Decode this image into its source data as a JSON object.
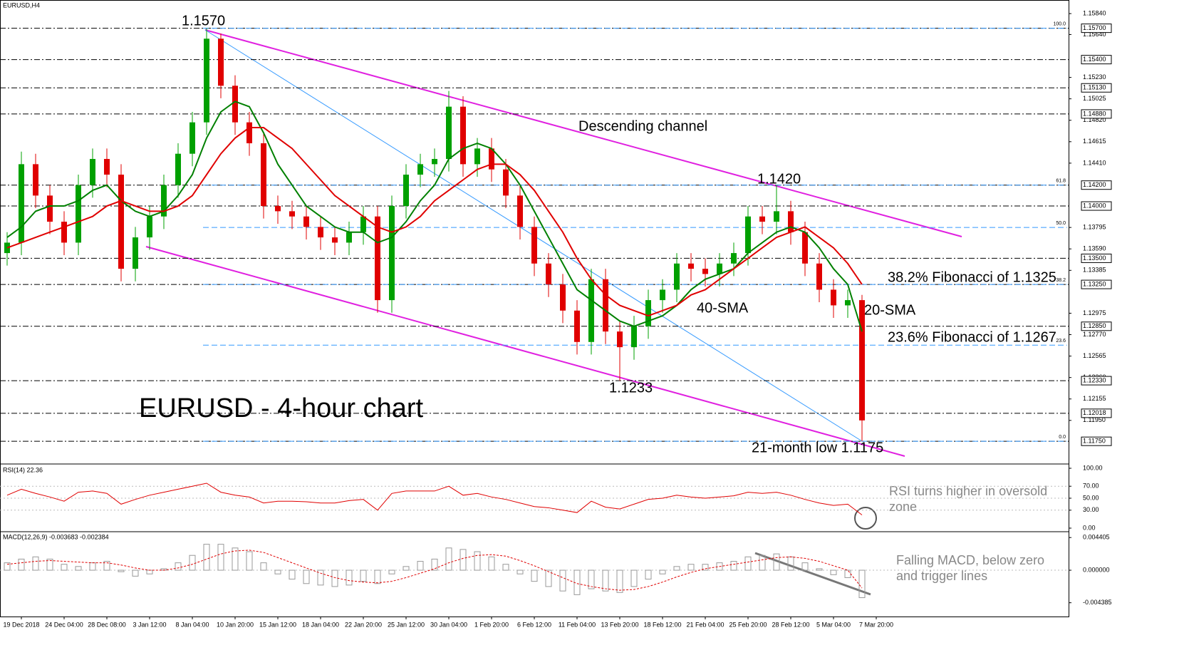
{
  "chart_data": {
    "type": "candlestick",
    "title": "EURUSD - 4-hour chart",
    "symbol_label": "EURUSD,H4",
    "xlabels": [
      "19 Dec 2018",
      "24 Dec 04:00",
      "28 Dec 08:00",
      "3 Jan 12:00",
      "8 Jan 04:00",
      "10 Jan 20:00",
      "15 Jan 12:00",
      "18 Jan 04:00",
      "22 Jan 20:00",
      "25 Jan 12:00",
      "30 Jan 04:00",
      "1 Feb 20:00",
      "6 Feb 12:00",
      "11 Feb 04:00",
      "13 Feb 20:00",
      "18 Feb 12:00",
      "21 Feb 04:00",
      "25 Feb 20:00",
      "28 Feb 12:00",
      "5 Mar 04:00",
      "7 Mar 20:00"
    ],
    "open": [
      1.1355,
      1.1365,
      1.144,
      1.141,
      1.1385,
      1.1365,
      1.142,
      1.1445,
      1.143,
      1.134,
      1.137,
      1.139,
      1.142,
      1.145,
      1.148,
      1.156,
      1.1515,
      1.148,
      1.146,
      1.14,
      1.1395,
      1.139,
      1.138,
      1.137,
      1.1365,
      1.1375,
      1.139,
      1.131,
      1.14,
      1.143,
      1.144,
      1.1445,
      1.1495,
      1.144,
      1.1455,
      1.1435,
      1.141,
      1.138,
      1.1345,
      1.1325,
      1.13,
      1.127,
      1.133,
      1.128,
      1.1265,
      1.1285,
      1.131,
      1.132,
      1.1345,
      1.134,
      1.1335,
      1.1345,
      1.1355,
      1.139,
      1.1385,
      1.1395,
      1.1375,
      1.1345,
      1.132,
      1.1305,
      1.131
    ],
    "high": [
      1.1375,
      1.1452,
      1.145,
      1.142,
      1.1395,
      1.143,
      1.1455,
      1.1455,
      1.144,
      1.138,
      1.14,
      1.143,
      1.146,
      1.149,
      1.157,
      1.1565,
      1.1525,
      1.149,
      1.147,
      1.141,
      1.1405,
      1.14,
      1.139,
      1.138,
      1.1385,
      1.14,
      1.14,
      1.141,
      1.144,
      1.145,
      1.1455,
      1.151,
      1.1505,
      1.1465,
      1.1465,
      1.1445,
      1.142,
      1.139,
      1.1355,
      1.1335,
      1.131,
      1.134,
      1.134,
      1.129,
      1.1295,
      1.132,
      1.133,
      1.1355,
      1.1355,
      1.135,
      1.1355,
      1.1365,
      1.14,
      1.14,
      1.142,
      1.1405,
      1.1385,
      1.1355,
      1.133,
      1.132,
      1.1315
    ],
    "low": [
      1.1343,
      1.1353,
      1.1398,
      1.1373,
      1.1353,
      1.1353,
      1.1408,
      1.1418,
      1.1328,
      1.1328,
      1.1358,
      1.1378,
      1.1408,
      1.1438,
      1.1468,
      1.1503,
      1.1468,
      1.1448,
      1.1388,
      1.1383,
      1.1378,
      1.1368,
      1.1358,
      1.1353,
      1.1353,
      1.1363,
      1.1298,
      1.1298,
      1.1388,
      1.1418,
      1.1428,
      1.1433,
      1.1428,
      1.1428,
      1.1423,
      1.1398,
      1.1368,
      1.1333,
      1.1313,
      1.1288,
      1.1258,
      1.1258,
      1.1268,
      1.1233,
      1.1253,
      1.1273,
      1.1298,
      1.1308,
      1.1328,
      1.1323,
      1.1323,
      1.1333,
      1.1343,
      1.1373,
      1.1373,
      1.1363,
      1.1333,
      1.1308,
      1.1293,
      1.1293,
      1.1175
    ],
    "close": [
      1.1365,
      1.144,
      1.141,
      1.1385,
      1.1365,
      1.142,
      1.1445,
      1.143,
      1.134,
      1.137,
      1.139,
      1.142,
      1.145,
      1.148,
      1.156,
      1.1515,
      1.148,
      1.146,
      1.14,
      1.1395,
      1.139,
      1.138,
      1.137,
      1.1365,
      1.1375,
      1.139,
      1.131,
      1.14,
      1.143,
      1.144,
      1.1445,
      1.1495,
      1.144,
      1.1455,
      1.1435,
      1.141,
      1.138,
      1.1345,
      1.1325,
      1.13,
      1.127,
      1.133,
      1.128,
      1.1265,
      1.1285,
      1.131,
      1.132,
      1.1345,
      1.134,
      1.1335,
      1.1345,
      1.1355,
      1.139,
      1.1385,
      1.1395,
      1.1375,
      1.1345,
      1.132,
      1.1305,
      1.131,
      1.1195
    ],
    "up_color": "#00a000",
    "down_color": "#e00000",
    "series": [
      {
        "name": "20-SMA",
        "color": "#008000",
        "values": [
          1.137,
          1.138,
          1.1395,
          1.14,
          1.14,
          1.1405,
          1.1415,
          1.142,
          1.1405,
          1.1395,
          1.139,
          1.1395,
          1.141,
          1.143,
          1.1465,
          1.149,
          1.15,
          1.1495,
          1.147,
          1.144,
          1.142,
          1.14,
          1.139,
          1.138,
          1.1375,
          1.1375,
          1.1365,
          1.137,
          1.1385,
          1.1405,
          1.142,
          1.1445,
          1.1455,
          1.146,
          1.1455,
          1.144,
          1.142,
          1.1395,
          1.137,
          1.1345,
          1.132,
          1.131,
          1.13,
          1.129,
          1.1285,
          1.129,
          1.1295,
          1.1305,
          1.132,
          1.133,
          1.1335,
          1.134,
          1.1355,
          1.1365,
          1.1375,
          1.138,
          1.1375,
          1.136,
          1.134,
          1.1325,
          1.128
        ]
      },
      {
        "name": "40-SMA",
        "color": "#e00000",
        "values": [
          1.136,
          1.1365,
          1.137,
          1.1375,
          1.138,
          1.1385,
          1.139,
          1.14,
          1.1405,
          1.14,
          1.1395,
          1.1395,
          1.14,
          1.141,
          1.143,
          1.145,
          1.1465,
          1.1475,
          1.1475,
          1.1465,
          1.1455,
          1.144,
          1.1425,
          1.141,
          1.14,
          1.139,
          1.138,
          1.1375,
          1.138,
          1.139,
          1.1405,
          1.1415,
          1.1425,
          1.1435,
          1.144,
          1.144,
          1.143,
          1.1415,
          1.1395,
          1.1375,
          1.135,
          1.133,
          1.1315,
          1.1305,
          1.13,
          1.1295,
          1.13,
          1.1305,
          1.1315,
          1.132,
          1.133,
          1.134,
          1.135,
          1.136,
          1.137,
          1.1375,
          1.138,
          1.137,
          1.136,
          1.1345,
          1.1325
        ]
      }
    ],
    "ylim": [
      1.1154,
      1.1597
    ],
    "yticks": [
      {
        "value": 1.1584,
        "label": "1.15840"
      },
      {
        "value": 1.1564,
        "label": "1.15640"
      },
      {
        "value": 1.1523,
        "label": "1.15230"
      },
      {
        "value": 1.15025,
        "label": "1.15025"
      },
      {
        "value": 1.1482,
        "label": "1.14820"
      },
      {
        "value": 1.14615,
        "label": "1.14615"
      },
      {
        "value": 1.1441,
        "label": "1.14410"
      },
      {
        "value": 1.13795,
        "label": "1.13795"
      },
      {
        "value": 1.1359,
        "label": "1.13590"
      },
      {
        "value": 1.13385,
        "label": "1.13385"
      },
      {
        "value": 1.12975,
        "label": "1.12975"
      },
      {
        "value": 1.1277,
        "label": "1.12770"
      },
      {
        "value": 1.12565,
        "label": "1.12565"
      },
      {
        "value": 1.1236,
        "label": "1.12360"
      },
      {
        "value": 1.12155,
        "label": "1.12155"
      },
      {
        "value": 1.1195,
        "label": "1.11950"
      }
    ],
    "levels": [
      {
        "value": 1.157,
        "label": "1.15700"
      },
      {
        "value": 1.154,
        "label": "1.15400"
      },
      {
        "value": 1.1513,
        "label": "1.15130"
      },
      {
        "value": 1.1488,
        "label": "1.14880"
      },
      {
        "value": 1.142,
        "label": "1.14200"
      },
      {
        "value": 1.14,
        "label": "1.14000"
      },
      {
        "value": 1.135,
        "label": "1.13500"
      },
      {
        "value": 1.1325,
        "label": "1.13250"
      },
      {
        "value": 1.1285,
        "label": "1.12850"
      },
      {
        "value": 1.1233,
        "label": "1.12330"
      },
      {
        "value": 1.12018,
        "label": "1.12018"
      },
      {
        "value": 1.1175,
        "label": "1.11750"
      }
    ],
    "fibonacci": [
      {
        "value": 1.157,
        "label": "100.0"
      },
      {
        "value": 1.142,
        "label": "61.8"
      },
      {
        "value": 1.13795,
        "label": "50.0"
      },
      {
        "value": 1.1325,
        "label": "38.2"
      },
      {
        "value": 1.1267,
        "label": "23.6"
      },
      {
        "value": 1.1175,
        "label": "0.0"
      }
    ],
    "annotations": [
      "1.1570",
      "1.1420",
      "1.1233",
      "21-month low 1.1175",
      "Descending channel",
      "38.2% Fibonacci of 1.1325",
      "23.6% Fibonacci of 1.1267",
      "40-SMA",
      "20-SMA"
    ],
    "rsi": {
      "label": "RSI(14) 22.36",
      "color": "#e00000",
      "ylim": [
        0,
        100
      ],
      "yticks": [
        {
          "value": 100,
          "label": "100.00"
        },
        {
          "value": 70,
          "label": "70.00"
        },
        {
          "value": 50,
          "label": "50.00"
        },
        {
          "value": 30,
          "label": "30.00"
        },
        {
          "value": 0,
          "label": "0.00"
        }
      ],
      "values": [
        55,
        65,
        58,
        52,
        45,
        60,
        62,
        58,
        40,
        48,
        55,
        60,
        65,
        70,
        75,
        60,
        55,
        52,
        42,
        45,
        45,
        44,
        42,
        42,
        46,
        48,
        30,
        58,
        62,
        62,
        62,
        70,
        55,
        58,
        52,
        48,
        42,
        36,
        34,
        30,
        26,
        45,
        35,
        32,
        40,
        48,
        50,
        55,
        52,
        50,
        52,
        54,
        60,
        58,
        60,
        55,
        48,
        42,
        38,
        40,
        22
      ],
      "annotation": "RSI turns higher in oversold zone"
    },
    "macd": {
      "label": "MACD(12,26,9) -0.003683 -0.002384",
      "color": "#999999",
      "signal_color": "#e00000",
      "ylim": [
        -0.0048,
        0.005
      ],
      "yticks": [
        {
          "value": 0.004405,
          "label": "0.004405"
        },
        {
          "value": 0,
          "label": "0.000000"
        },
        {
          "value": -0.004385,
          "label": "-0.004385"
        }
      ],
      "values": [
        0.001,
        0.0015,
        0.0018,
        0.0015,
        0.0008,
        0.0005,
        0.001,
        0.0012,
        -0.0002,
        -0.0008,
        -0.0005,
        0.0002,
        0.001,
        0.002,
        0.0035,
        0.0035,
        0.003,
        0.0025,
        0.001,
        -0.0005,
        -0.0012,
        -0.0018,
        -0.002,
        -0.0022,
        -0.002,
        -0.0015,
        -0.0018,
        -0.0005,
        0.0005,
        0.0012,
        0.0015,
        0.003,
        0.0028,
        0.0025,
        0.0018,
        0.0008,
        -0.0005,
        -0.0015,
        -0.0022,
        -0.0028,
        -0.0033,
        -0.0025,
        -0.0028,
        -0.003,
        -0.0022,
        -0.0012,
        -0.0005,
        0.0005,
        0.0008,
        0.0008,
        0.001,
        0.0012,
        0.0018,
        0.002,
        0.0022,
        0.0018,
        0.001,
        0.0002,
        -0.0006,
        -0.001,
        -0.0037
      ],
      "signal": [
        0.0008,
        0.001,
        0.0012,
        0.0013,
        0.0012,
        0.0011,
        0.001,
        0.001,
        0.0007,
        0.0003,
        0.0,
        0.0,
        0.0003,
        0.0008,
        0.0015,
        0.0022,
        0.0026,
        0.0027,
        0.0024,
        0.0017,
        0.001,
        0.0003,
        -0.0004,
        -0.001,
        -0.0014,
        -0.0016,
        -0.0017,
        -0.0015,
        -0.001,
        -0.0004,
        0.0002,
        0.001,
        0.0016,
        0.002,
        0.0021,
        0.0019,
        0.0013,
        0.0006,
        -0.0002,
        -0.001,
        -0.0018,
        -0.0022,
        -0.0025,
        -0.0027,
        -0.0026,
        -0.0022,
        -0.0016,
        -0.0009,
        -0.0003,
        0.0002,
        0.0005,
        0.0008,
        0.0011,
        0.0014,
        0.0017,
        0.0018,
        0.0016,
        0.0012,
        0.0006,
        0.0,
        -0.0024
      ],
      "annotation": "Falling MACD, below zero and trigger lines"
    }
  }
}
